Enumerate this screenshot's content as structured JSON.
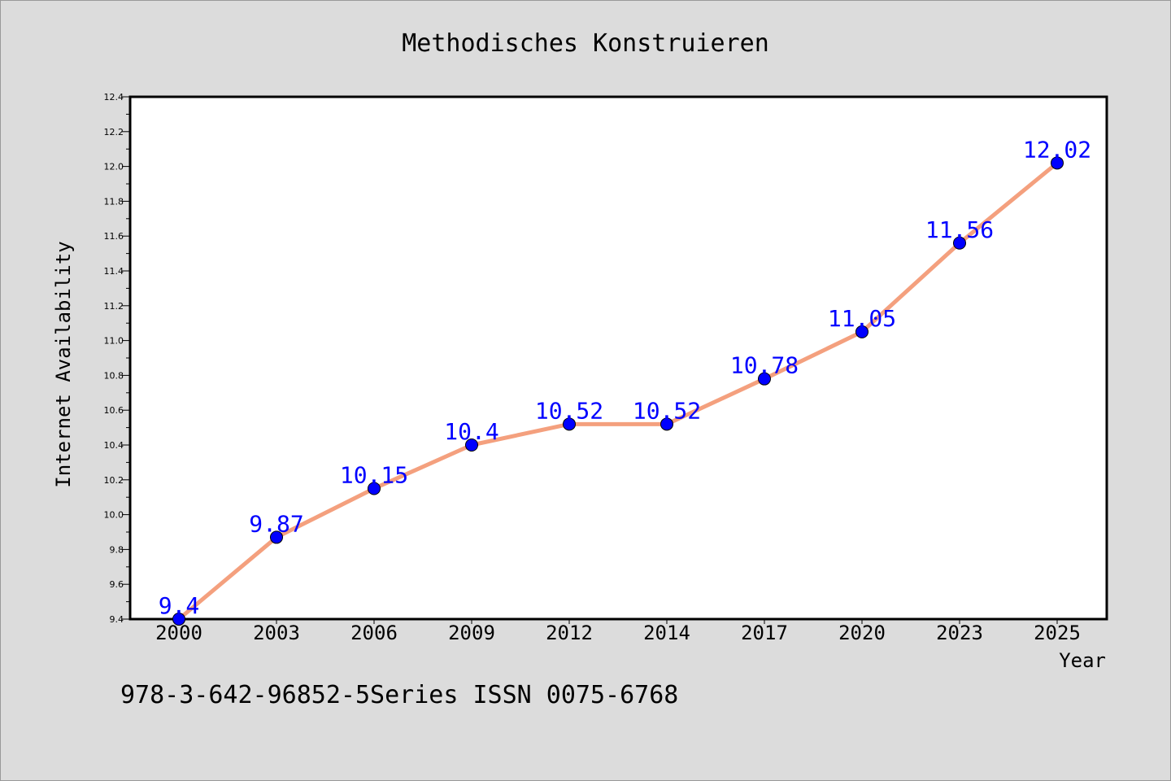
{
  "chart_data": {
    "type": "line",
    "title": "Methodisches Konstruieren",
    "xlabel": "Year",
    "ylabel": "Internet Availability",
    "categories": [
      "2000",
      "2003",
      "2006",
      "2009",
      "2012",
      "2014",
      "2017",
      "2020",
      "2023",
      "2025"
    ],
    "series": [
      {
        "values": [
          9.4,
          9.87,
          10.15,
          10.4,
          10.52,
          10.52,
          10.78,
          11.05,
          11.56,
          12.02
        ],
        "line_color": "#f4a07e",
        "marker_color": "#0000ff"
      }
    ],
    "ylim": [
      9.4,
      12.4
    ],
    "yticks": [
      "9.4",
      "9.6",
      "9.8",
      "10.0",
      "10.2",
      "10.4",
      "10.6",
      "10.8",
      "11.0",
      "11.2",
      "11.4",
      "11.6",
      "11.8",
      "12.0",
      "12.2",
      "12.4"
    ],
    "data_labels": [
      "9.4",
      "9.87",
      "10.15",
      "10.4",
      "10.52",
      "10.52",
      "10.78",
      "11.05",
      "11.56",
      "12.02"
    ],
    "label_color": "#0000ff",
    "grid": false
  },
  "footer_text": "978-3-642-96852-5Series ISSN 0075-6768"
}
